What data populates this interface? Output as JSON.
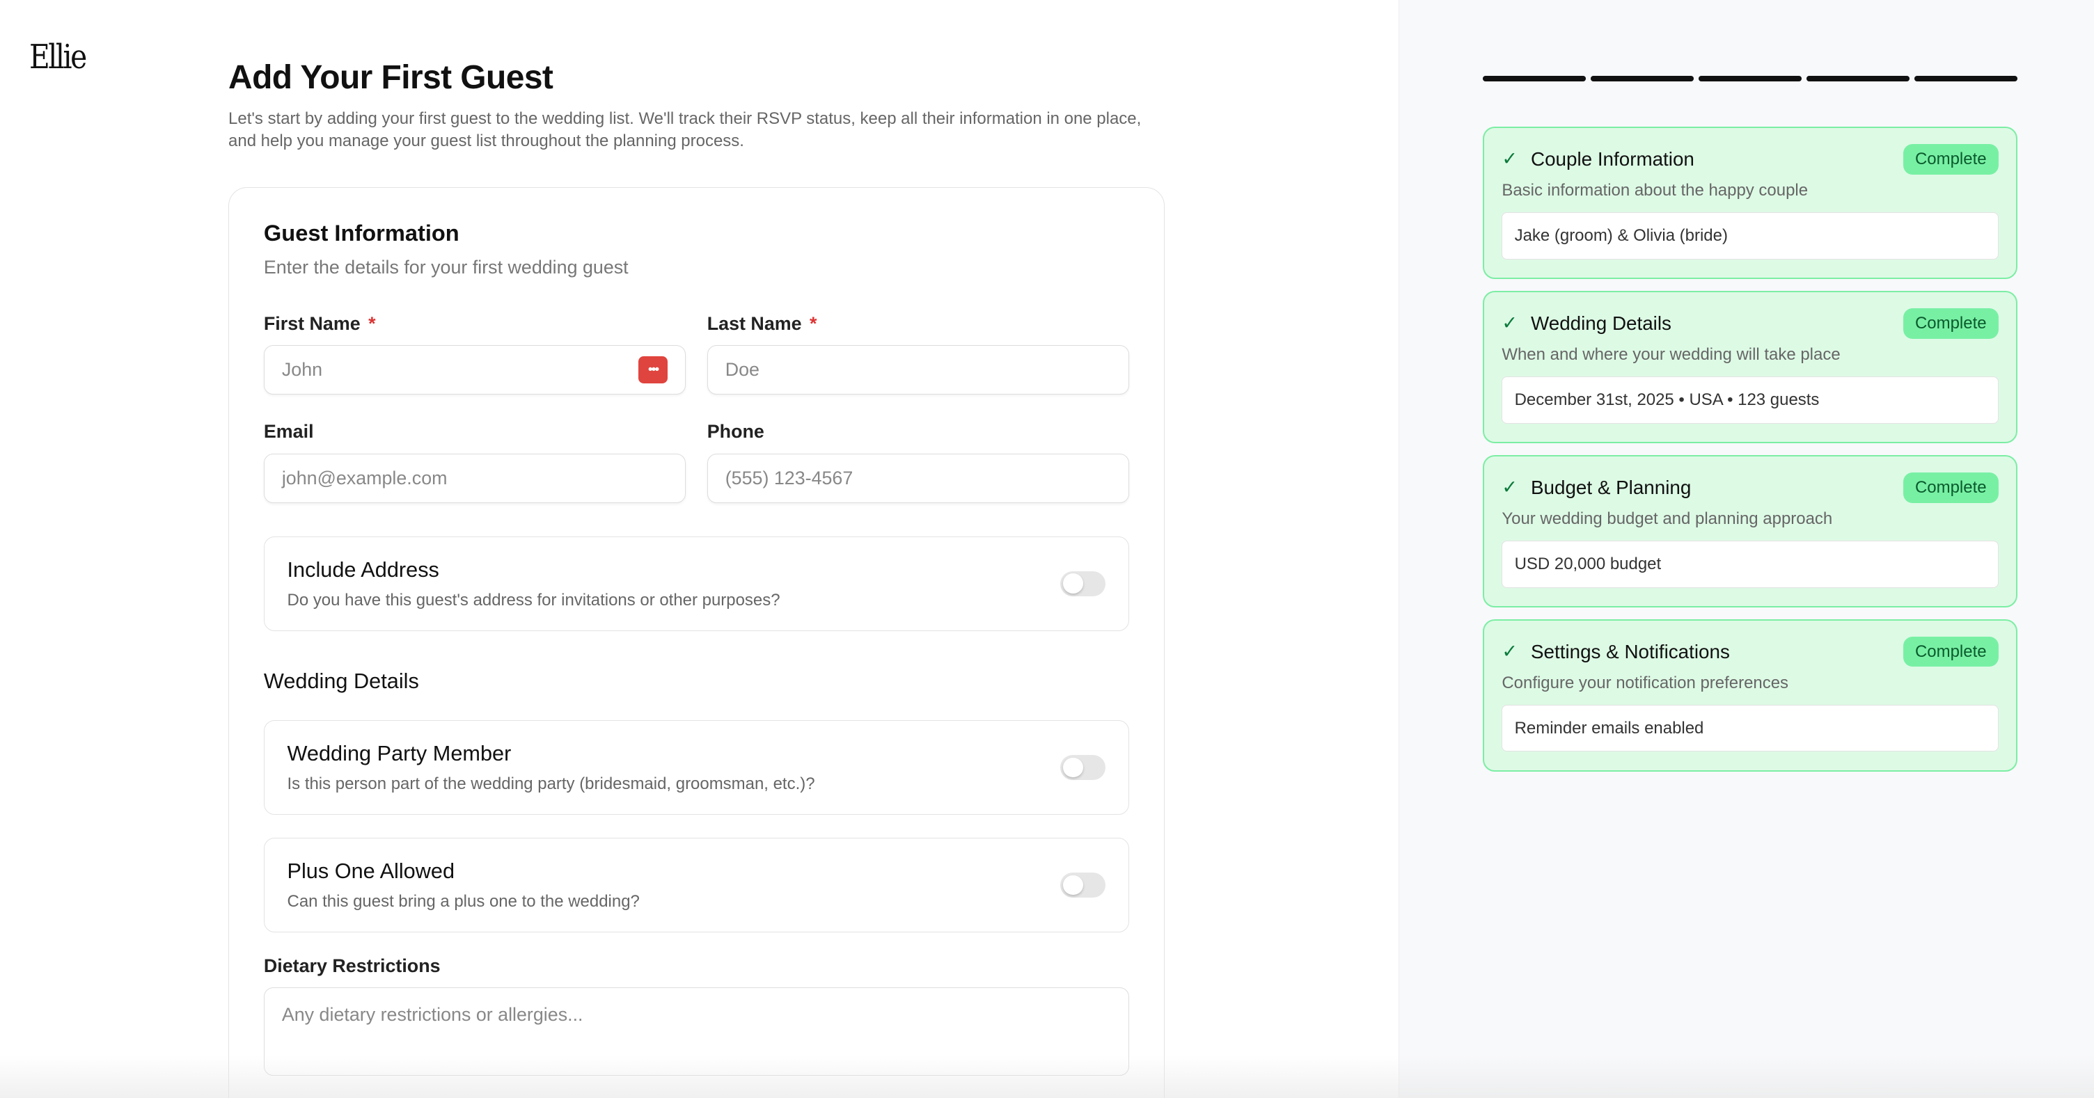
{
  "brand": "Ellie",
  "page": {
    "title": "Add Your First Guest",
    "intro": "Let's start by adding your first guest to the wedding list. We'll track their RSVP status, keep all their information in one place, and help you manage your guest list throughout the planning process."
  },
  "form": {
    "title": "Guest Information",
    "subtitle": "Enter the details for your first wedding guest",
    "first_name": {
      "label": "First Name",
      "required": "*",
      "placeholder": "John"
    },
    "last_name": {
      "label": "Last Name",
      "required": "*",
      "placeholder": "Doe"
    },
    "email": {
      "label": "Email",
      "placeholder": "john@example.com"
    },
    "phone": {
      "label": "Phone",
      "placeholder": "(555) 123-4567"
    },
    "address": {
      "title": "Include Address",
      "desc": "Do you have this guest's address for invitations or other purposes?",
      "on": false
    },
    "wedding_section": "Wedding Details",
    "party": {
      "title": "Wedding Party Member",
      "desc": "Is this person part of the wedding party (bridesmaid, groomsman, etc.)?",
      "on": false
    },
    "plus_one": {
      "title": "Plus One Allowed",
      "desc": "Can this guest bring a plus one to the wedding?",
      "on": false
    },
    "dietary": {
      "label": "Dietary Restrictions",
      "placeholder": "Any dietary restrictions or allergies..."
    }
  },
  "progress": {
    "segments": 5,
    "completed": 5
  },
  "steps": [
    {
      "title": "Couple Information",
      "status": "Complete",
      "desc": "Basic information about the happy couple",
      "value": "Jake (groom) & Olivia (bride)"
    },
    {
      "title": "Wedding Details",
      "status": "Complete",
      "desc": "When and where your wedding will take place",
      "value": "December 31st, 2025 • USA • 123 guests"
    },
    {
      "title": "Budget & Planning",
      "status": "Complete",
      "desc": "Your wedding budget and planning approach",
      "value": "USD 20,000 budget"
    },
    {
      "title": "Settings & Notifications",
      "status": "Complete",
      "desc": "Configure your notification preferences",
      "value": "Reminder emails enabled"
    }
  ],
  "colors": {
    "complete_bg": "#ddfae5",
    "complete_border": "#7ceea4",
    "badge": "#78f0a4",
    "required": "#dd3333"
  }
}
